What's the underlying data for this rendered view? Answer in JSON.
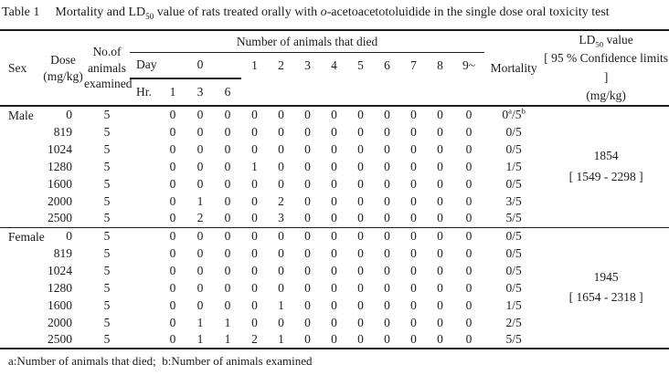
{
  "title": {
    "label": "Table 1",
    "text": "Mortality and LD~50~ value of rats treated orally with *o*-acetoacetotoluidide in the single dose oral toxicity test"
  },
  "table": {
    "headers": {
      "sex": "Sex",
      "dose": "Dose\n(mg/kg)",
      "animals": "No.of\nanimals\nexamined",
      "died": "Number of animals that died",
      "day": "Day",
      "day0": "0",
      "hr": "Hr.",
      "hr_cols": [
        "1",
        "3",
        "6"
      ],
      "day_cols": [
        "1",
        "2",
        "3",
        "4",
        "5",
        "6",
        "7",
        "8",
        "9~"
      ],
      "mortality": "Mortality",
      "ld50": "LD~50~ value\n[ 95 % Confidence limits ]\n(mg/kg)"
    },
    "groups": [
      {
        "sex": "Male",
        "ld50": "1854\n[ 1549 - 2298 ]",
        "rows": [
          {
            "dose": "0",
            "n": "5",
            "died": [
              "0",
              "0",
              "0",
              "0",
              "0",
              "0",
              "0",
              "0",
              "0",
              "0",
              "0",
              "0"
            ],
            "mortality": "0^a^/5^b^"
          },
          {
            "dose": "819",
            "n": "5",
            "died": [
              "0",
              "0",
              "0",
              "0",
              "0",
              "0",
              "0",
              "0",
              "0",
              "0",
              "0",
              "0"
            ],
            "mortality": "0/5"
          },
          {
            "dose": "1024",
            "n": "5",
            "died": [
              "0",
              "0",
              "0",
              "0",
              "0",
              "0",
              "0",
              "0",
              "0",
              "0",
              "0",
              "0"
            ],
            "mortality": "0/5"
          },
          {
            "dose": "1280",
            "n": "5",
            "died": [
              "0",
              "0",
              "0",
              "1",
              "0",
              "0",
              "0",
              "0",
              "0",
              "0",
              "0",
              "0"
            ],
            "mortality": "1/5"
          },
          {
            "dose": "1600",
            "n": "5",
            "died": [
              "0",
              "0",
              "0",
              "0",
              "0",
              "0",
              "0",
              "0",
              "0",
              "0",
              "0",
              "0"
            ],
            "mortality": "0/5"
          },
          {
            "dose": "2000",
            "n": "5",
            "died": [
              "0",
              "1",
              "0",
              "0",
              "2",
              "0",
              "0",
              "0",
              "0",
              "0",
              "0",
              "0"
            ],
            "mortality": "3/5"
          },
          {
            "dose": "2500",
            "n": "5",
            "died": [
              "0",
              "2",
              "0",
              "0",
              "3",
              "0",
              "0",
              "0",
              "0",
              "0",
              "0",
              "0"
            ],
            "mortality": "5/5"
          }
        ]
      },
      {
        "sex": "Female",
        "ld50": "1945\n[ 1654 - 2318 ]",
        "rows": [
          {
            "dose": "0",
            "n": "5",
            "died": [
              "0",
              "0",
              "0",
              "0",
              "0",
              "0",
              "0",
              "0",
              "0",
              "0",
              "0",
              "0"
            ],
            "mortality": "0/5"
          },
          {
            "dose": "819",
            "n": "5",
            "died": [
              "0",
              "0",
              "0",
              "0",
              "0",
              "0",
              "0",
              "0",
              "0",
              "0",
              "0",
              "0"
            ],
            "mortality": "0/5"
          },
          {
            "dose": "1024",
            "n": "5",
            "died": [
              "0",
              "0",
              "0",
              "0",
              "0",
              "0",
              "0",
              "0",
              "0",
              "0",
              "0",
              "0"
            ],
            "mortality": "0/5"
          },
          {
            "dose": "1280",
            "n": "5",
            "died": [
              "0",
              "0",
              "0",
              "0",
              "0",
              "0",
              "0",
              "0",
              "0",
              "0",
              "0",
              "0"
            ],
            "mortality": "0/5"
          },
          {
            "dose": "1600",
            "n": "5",
            "died": [
              "0",
              "0",
              "0",
              "0",
              "1",
              "0",
              "0",
              "0",
              "0",
              "0",
              "0",
              "0"
            ],
            "mortality": "1/5"
          },
          {
            "dose": "2000",
            "n": "5",
            "died": [
              "0",
              "1",
              "1",
              "0",
              "0",
              "0",
              "0",
              "0",
              "0",
              "0",
              "0",
              "0"
            ],
            "mortality": "2/5"
          },
          {
            "dose": "2500",
            "n": "5",
            "died": [
              "0",
              "1",
              "1",
              "2",
              "1",
              "0",
              "0",
              "0",
              "0",
              "0",
              "0",
              "0"
            ],
            "mortality": "5/5"
          }
        ]
      }
    ]
  },
  "footnote": "a:Number of animals that died;  b:Number of animals examined",
  "colors": {
    "text": "#1c1c1c",
    "rule": "#1c1c1c",
    "background": "#ffffff"
  }
}
